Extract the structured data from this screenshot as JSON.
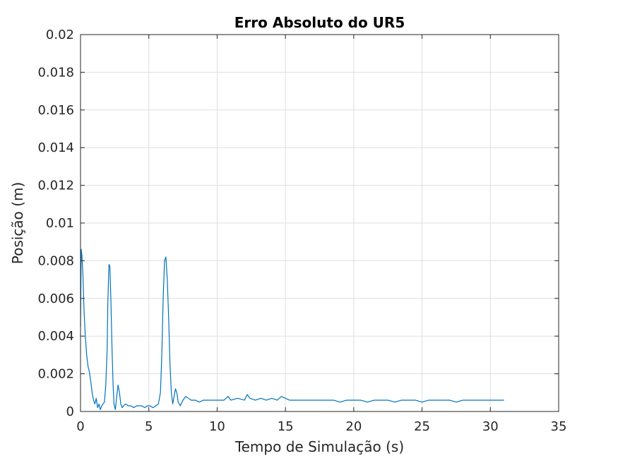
{
  "chart_data": {
    "type": "line",
    "title": "Erro Absoluto do UR5",
    "xlabel": "Tempo de Simulação (s)",
    "ylabel": "Posição (m)",
    "xlim": [
      0,
      35
    ],
    "ylim": [
      0,
      0.02
    ],
    "xticks": [
      0,
      5,
      10,
      15,
      20,
      25,
      30,
      35
    ],
    "yticks": [
      0,
      0.002,
      0.004,
      0.006,
      0.008,
      0.01,
      0.012,
      0.014,
      0.016,
      0.018,
      0.02
    ],
    "xtick_labels": [
      "0",
      "5",
      "10",
      "15",
      "20",
      "25",
      "30",
      "35"
    ],
    "ytick_labels": [
      "0",
      "0.002",
      "0.004",
      "0.006",
      "0.008",
      "0.01",
      "0.012",
      "0.014",
      "0.016",
      "0.018",
      "0.02"
    ],
    "grid": true,
    "line_color": "#0072BD",
    "series": [
      {
        "x": [
          0.0,
          0.05,
          0.1,
          0.18,
          0.25,
          0.35,
          0.45,
          0.55,
          0.65,
          0.75,
          0.85,
          0.95,
          1.05,
          1.15,
          1.25,
          1.35,
          1.45,
          1.55,
          1.65,
          1.75,
          1.85,
          1.95,
          2.0,
          2.08,
          2.15,
          2.22,
          2.3,
          2.38,
          2.45,
          2.55,
          2.65,
          2.75,
          2.85,
          2.95,
          3.05,
          3.15,
          3.3,
          3.5,
          3.7,
          3.9,
          4.1,
          4.3,
          4.5,
          4.7,
          4.9,
          5.1,
          5.3,
          5.5,
          5.7,
          5.85,
          5.95,
          6.05,
          6.15,
          6.25,
          6.35,
          6.45,
          6.55,
          6.65,
          6.75,
          6.85,
          6.95,
          7.05,
          7.15,
          7.3,
          7.5,
          7.7,
          7.9,
          8.1,
          8.4,
          8.7,
          9.0,
          9.5,
          10.0,
          10.5,
          10.8,
          11.0,
          11.5,
          12.0,
          12.2,
          12.4,
          12.8,
          13.2,
          13.6,
          14.0,
          14.4,
          14.7,
          15.0,
          15.3,
          15.6,
          16.0,
          16.5,
          17.0,
          17.5,
          18.0,
          18.5,
          19.0,
          19.5,
          20.0,
          20.5,
          21.0,
          21.5,
          22.0,
          22.5,
          23.0,
          23.5,
          24.0,
          24.5,
          25.0,
          25.5,
          26.0,
          26.5,
          27.0,
          27.5,
          28.0,
          28.5,
          29.0,
          29.5,
          30.0,
          30.5,
          31.0
        ],
        "y": [
          0.0045,
          0.0086,
          0.0083,
          0.0072,
          0.0055,
          0.004,
          0.003,
          0.0024,
          0.0021,
          0.0016,
          0.001,
          0.0006,
          0.0004,
          0.0007,
          0.0002,
          0.0004,
          0.0001,
          0.0003,
          0.0004,
          0.0005,
          0.0014,
          0.0033,
          0.0058,
          0.0078,
          0.0077,
          0.006,
          0.0035,
          0.0015,
          0.0004,
          0.0001,
          0.0008,
          0.0014,
          0.001,
          0.0004,
          0.0002,
          0.0003,
          0.0004,
          0.0003,
          0.0003,
          0.0002,
          0.0003,
          0.0003,
          0.0003,
          0.0002,
          0.0003,
          0.0003,
          0.0002,
          0.0003,
          0.0004,
          0.001,
          0.003,
          0.006,
          0.008,
          0.0082,
          0.007,
          0.005,
          0.0025,
          0.001,
          0.0004,
          0.0008,
          0.0012,
          0.001,
          0.0005,
          0.0003,
          0.0006,
          0.0008,
          0.0007,
          0.0006,
          0.0006,
          0.0005,
          0.0006,
          0.0006,
          0.0006,
          0.0006,
          0.0008,
          0.0006,
          0.0007,
          0.0006,
          0.0009,
          0.0007,
          0.0006,
          0.0007,
          0.0006,
          0.0007,
          0.0006,
          0.0008,
          0.0007,
          0.0006,
          0.0006,
          0.0006,
          0.0006,
          0.0006,
          0.0006,
          0.0006,
          0.0006,
          0.0005,
          0.0006,
          0.0006,
          0.0006,
          0.0005,
          0.0006,
          0.0006,
          0.0006,
          0.0005,
          0.0006,
          0.0006,
          0.0006,
          0.0005,
          0.0006,
          0.0006,
          0.0006,
          0.0006,
          0.0005,
          0.0006,
          0.0006,
          0.0006,
          0.0006,
          0.0006,
          0.0006,
          0.0006
        ]
      }
    ]
  }
}
